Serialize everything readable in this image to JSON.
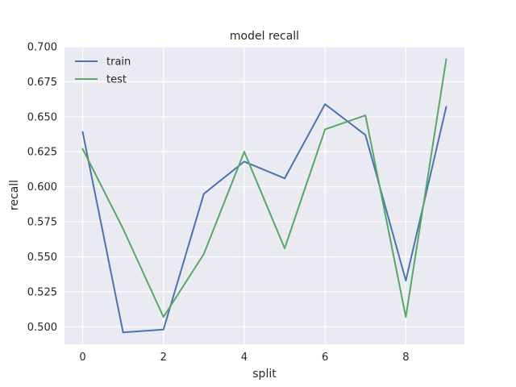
{
  "chart_data": {
    "type": "line",
    "title": "model recall",
    "xlabel": "split",
    "ylabel": "recall",
    "x": [
      0,
      1,
      2,
      3,
      4,
      5,
      6,
      7,
      8,
      9
    ],
    "xlim": [
      -0.45,
      9.45
    ],
    "ylim": [
      0.4875,
      0.7
    ],
    "xticks": [
      0,
      2,
      4,
      6,
      8
    ],
    "yticks": [
      0.5,
      0.525,
      0.55,
      0.575,
      0.6,
      0.625,
      0.65,
      0.675,
      0.7
    ],
    "ytick_labels": [
      "0.500",
      "0.525",
      "0.550",
      "0.575",
      "0.600",
      "0.625",
      "0.650",
      "0.675",
      "0.700"
    ],
    "grid": true,
    "legend_position": "top-left",
    "background": "#eaeaf2",
    "series": [
      {
        "name": "train",
        "color": "#4c72b0",
        "values": [
          0.639,
          0.496,
          0.498,
          0.595,
          0.618,
          0.606,
          0.659,
          0.637,
          0.533,
          0.657
        ]
      },
      {
        "name": "test",
        "color": "#55a868",
        "values": [
          0.627,
          0.57,
          0.507,
          0.552,
          0.625,
          0.556,
          0.641,
          0.651,
          0.507,
          0.691
        ]
      }
    ]
  }
}
